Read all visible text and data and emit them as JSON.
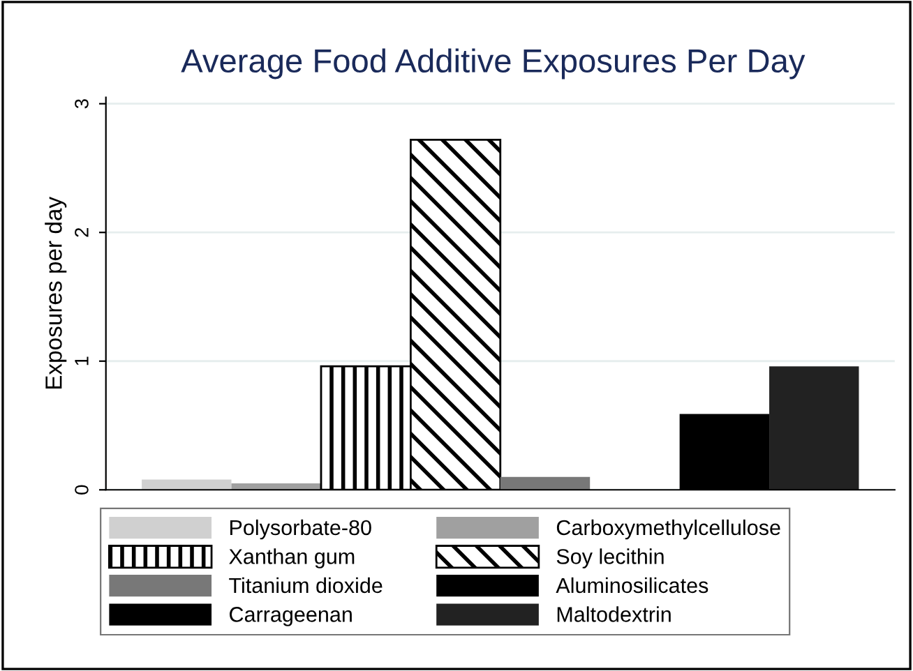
{
  "chart_data": {
    "type": "bar",
    "title": "Average Food Additive Exposures Per Day",
    "ylabel": "Exposures per day",
    "categories": [
      null
    ],
    "series": [
      {
        "name": "Polysorbate-80",
        "color": "#d0d0d0",
        "values": [
          0.08
        ]
      },
      {
        "name": "Carboxymethylcellulose",
        "color": "#a0a0a0",
        "values": [
          0.05
        ]
      },
      {
        "name": "Xanthan gum",
        "color": "#000000",
        "values": [
          0.96
        ]
      },
      {
        "name": "Soy lecithin",
        "color": "#000000",
        "values": [
          2.72
        ]
      },
      {
        "name": "Titanium dioxide",
        "color": "#787878",
        "values": [
          0.1
        ]
      },
      {
        "name": "Aluminosilicates",
        "color": "#000000",
        "values": [
          null
        ]
      },
      {
        "name": "Carrageenan",
        "color": "#000000",
        "values": [
          0.59
        ]
      },
      {
        "name": "Maltodextrin",
        "color": "#222222",
        "values": [
          0.96
        ]
      }
    ],
    "ylim": [
      0,
      3.05
    ],
    "yticks": [
      0,
      1,
      2,
      3
    ],
    "grid": "y",
    "legend": "bottom"
  }
}
